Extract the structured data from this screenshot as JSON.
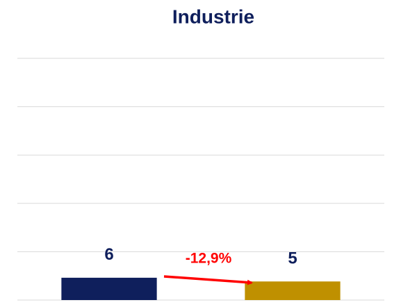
{
  "chart_data": {
    "type": "bar",
    "title": "Industrie",
    "categories": [
      null,
      null
    ],
    "series": [
      {
        "values": [
          6,
          5
        ],
        "colors": [
          "#0f1f5c",
          "#bf9000"
        ]
      }
    ],
    "ylim": [
      0,
      65
    ],
    "yticks": [
      0,
      13,
      26,
      39,
      52,
      65
    ],
    "grid": true,
    "annotations": [
      {
        "text": "-12,9%",
        "color": "#ff0000"
      }
    ]
  }
}
